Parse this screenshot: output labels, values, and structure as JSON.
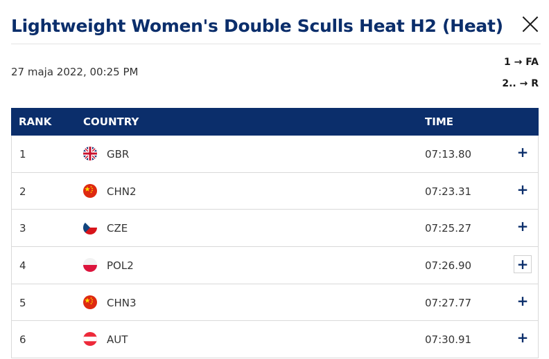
{
  "header": {
    "title": "Lightweight Women's Double Sculls Heat H2 (Heat)"
  },
  "date": "27 maja 2022, 00:25 PM",
  "progression": {
    "line1": "1 → FA",
    "line2": "2.. → R"
  },
  "table": {
    "columns": {
      "rank": "RANK",
      "country": "COUNTRY",
      "time": "TIME"
    },
    "rows": [
      {
        "rank": "1",
        "country": "GBR",
        "time": "07:13.80",
        "flag": "gb-flag-icon",
        "expand": "+"
      },
      {
        "rank": "2",
        "country": "CHN2",
        "time": "07:23.31",
        "flag": "cn-flag-icon",
        "expand": "+"
      },
      {
        "rank": "3",
        "country": "CZE",
        "time": "07:25.27",
        "flag": "cz-flag-icon",
        "expand": "+"
      },
      {
        "rank": "4",
        "country": "POL2",
        "time": "07:26.90",
        "flag": "pl-flag-icon",
        "expand": "+"
      },
      {
        "rank": "5",
        "country": "CHN3",
        "time": "07:27.77",
        "flag": "cn-flag-icon",
        "expand": "+"
      },
      {
        "rank": "6",
        "country": "AUT",
        "time": "07:30.91",
        "flag": "at-flag-icon",
        "expand": "+"
      }
    ]
  },
  "colors": {
    "accent": "#0b2e6b",
    "header_bg": "#0b2e6b"
  }
}
